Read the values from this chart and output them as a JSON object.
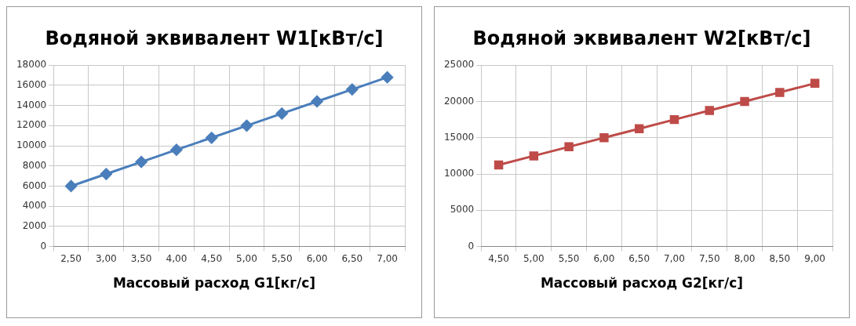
{
  "chart_data": [
    {
      "type": "line",
      "title": "Водяной эквивалент W1[кВт/с]",
      "xlabel": "Массовый расход G1[кг/с]",
      "categories": [
        "2,50",
        "3,00",
        "3,50",
        "4,00",
        "4,50",
        "5,00",
        "5,50",
        "6,00",
        "6,50",
        "7,00"
      ],
      "series": [
        {
          "color": "#4a7ebb",
          "values": [
            6000,
            7200,
            8400,
            9600,
            10800,
            12000,
            13200,
            14400,
            15600,
            16800
          ]
        }
      ],
      "ylim": [
        0,
        18000
      ],
      "yticks": [
        0,
        2000,
        4000,
        6000,
        8000,
        10000,
        12000,
        14000,
        16000,
        18000
      ],
      "grid": true,
      "legend": false,
      "marker": "diamond"
    },
    {
      "type": "line",
      "title": "Водяной эквивалент W2[кВт/с]",
      "xlabel": "Массовый расход G2[кг/с]",
      "categories": [
        "4,50",
        "5,00",
        "5,50",
        "6,00",
        "6,50",
        "7,00",
        "7,50",
        "8,00",
        "8,50",
        "9,00"
      ],
      "series": [
        {
          "color": "#be4b48",
          "values": [
            11250,
            12500,
            13750,
            15000,
            16250,
            17500,
            18750,
            20000,
            21250,
            22500
          ]
        }
      ],
      "ylim": [
        0,
        25000
      ],
      "yticks": [
        0,
        5000,
        10000,
        15000,
        20000,
        25000
      ],
      "grid": true,
      "legend": false,
      "marker": "square"
    }
  ]
}
